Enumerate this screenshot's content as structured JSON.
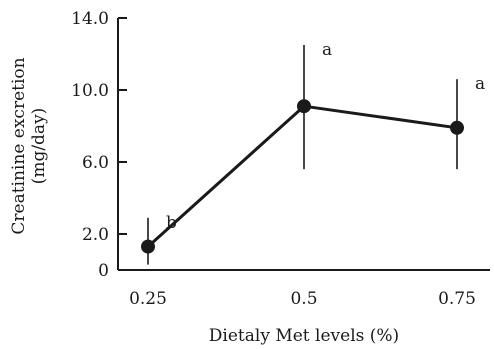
{
  "chart_data": {
    "type": "line",
    "title": "",
    "xlabel": "Dietaly Met levels (%)",
    "ylabel_line1": "Creatinine excretion",
    "ylabel_line2": "(mg/day)",
    "x_tick_labels": [
      "0.25",
      "0.5",
      "0.75"
    ],
    "y_ticks": [
      {
        "value": 0,
        "label": "0"
      },
      {
        "value": 2,
        "label": "2.0"
      },
      {
        "value": 6,
        "label": "6.0"
      },
      {
        "value": 10,
        "label": "10.0"
      },
      {
        "value": 14,
        "label": "14.0"
      }
    ],
    "ylim": [
      0,
      14
    ],
    "grid": false,
    "series": [
      {
        "points": [
          {
            "x": 0.25,
            "y": 1.3,
            "err_low": 0.3,
            "err_high": 2.9,
            "letter": "b"
          },
          {
            "x": 0.5,
            "y": 9.1,
            "err_low": 5.6,
            "err_high": 12.5,
            "letter": "a"
          },
          {
            "x": 0.75,
            "y": 7.9,
            "err_low": 5.6,
            "err_high": 10.6,
            "letter": "a"
          }
        ]
      }
    ]
  },
  "colors": {
    "line": "#1a1a1a",
    "marker": "#1a1a1a",
    "axis": "#1a1a1a"
  }
}
